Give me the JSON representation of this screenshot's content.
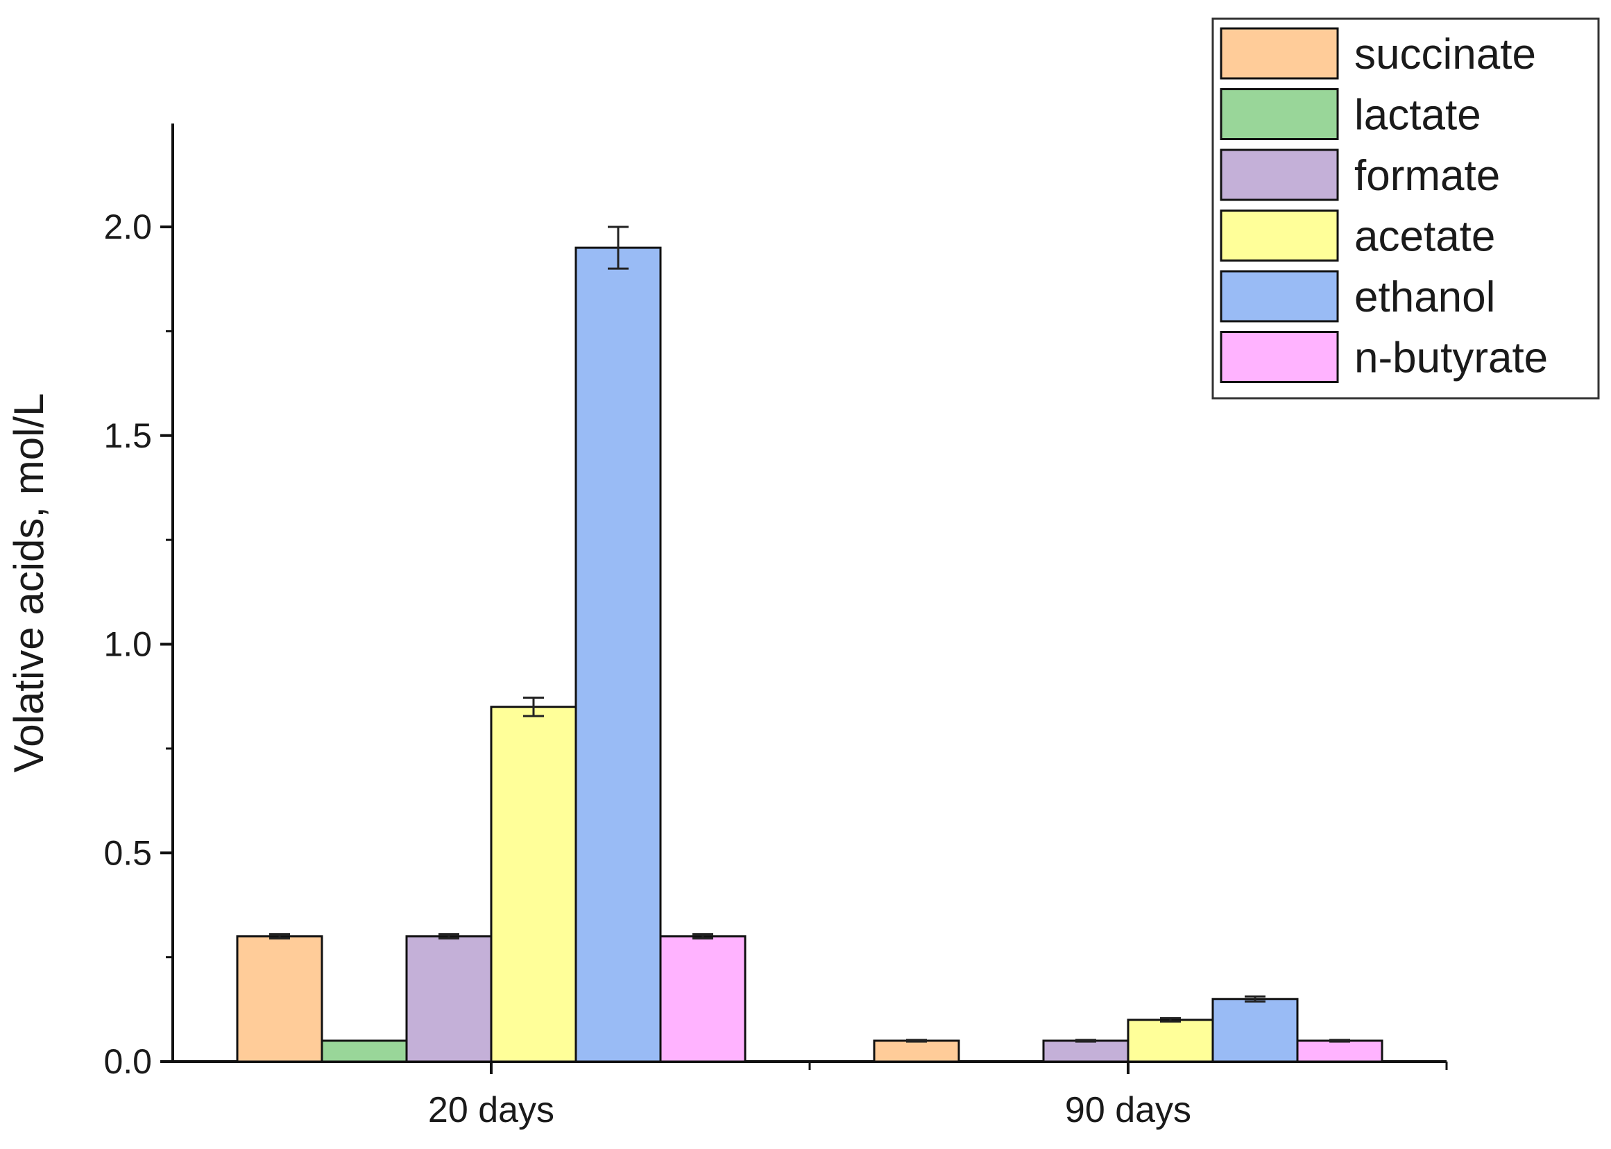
{
  "chart_data": {
    "type": "bar",
    "title": "",
    "xlabel": "",
    "ylabel": "Volative acids, mol/L",
    "categories": [
      "20 days",
      "90 days"
    ],
    "ylim": [
      0,
      2.25
    ],
    "yticks": [
      0.0,
      0.5,
      1.0,
      1.5,
      2.0
    ],
    "ytick_labels": [
      "0.0",
      "0.5",
      "1.0",
      "1.5",
      "2.0"
    ],
    "grid": false,
    "legend_position": "top-right",
    "series": [
      {
        "name": "succinate",
        "color": "#FFCC99",
        "values": [
          0.3,
          0.05
        ],
        "errors": [
          0.005,
          0.002
        ]
      },
      {
        "name": "lactate",
        "color": "#99D699",
        "values": [
          0.05,
          0.0
        ],
        "errors": [
          0.0,
          0.0
        ]
      },
      {
        "name": "formate",
        "color": "#C4B0D8",
        "values": [
          0.3,
          0.05
        ],
        "errors": [
          0.005,
          0.002
        ]
      },
      {
        "name": "acetate",
        "color": "#FFFF99",
        "values": [
          0.85,
          0.1
        ],
        "errors": [
          0.022,
          0.004
        ]
      },
      {
        "name": "ethanol",
        "color": "#99BBF5",
        "values": [
          1.95,
          0.15
        ],
        "errors": [
          0.05,
          0.006
        ]
      },
      {
        "name": "n-butyrate",
        "color": "#FFB3FF",
        "values": [
          0.3,
          0.05
        ],
        "errors": [
          0.005,
          0.002
        ]
      }
    ]
  }
}
